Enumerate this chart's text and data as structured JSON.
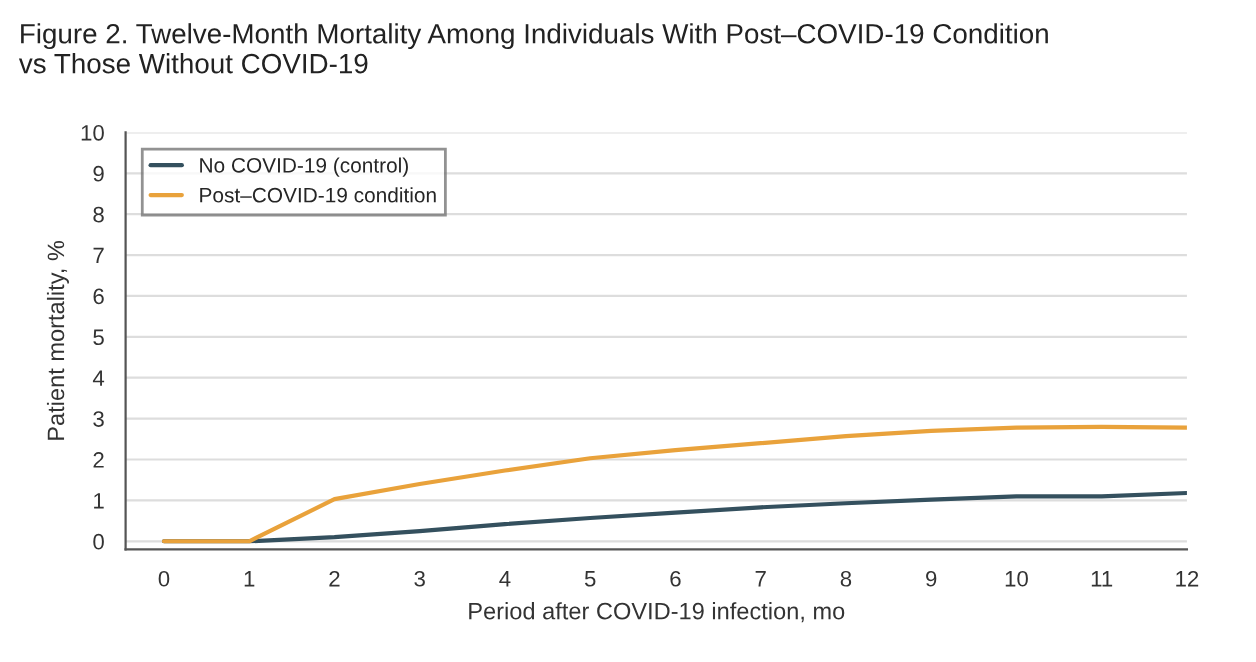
{
  "chart_data": {
    "type": "line",
    "title": "Figure 2. Twelve-Month Mortality Among Individuals With Post–COVID-19 Condition\nvs Those Without COVID-19",
    "xlabel": "Period after COVID-19 infection, mo",
    "ylabel": "Patient mortality, %",
    "x": [
      0,
      1,
      2,
      3,
      4,
      5,
      6,
      7,
      8,
      9,
      10,
      11,
      12
    ],
    "series": [
      {
        "name": "No COVID-19 (control)",
        "color": "#34505e",
        "values": [
          0,
          0,
          0.1,
          0.25,
          0.42,
          0.57,
          0.7,
          0.83,
          0.93,
          1.02,
          1.1,
          1.1,
          1.18
        ]
      },
      {
        "name": "Post–COVID-19 condition",
        "color": "#e9a23b",
        "values": [
          0,
          0,
          1.03,
          1.4,
          1.73,
          2.03,
          2.23,
          2.4,
          2.57,
          2.7,
          2.78,
          2.8,
          2.78
        ]
      }
    ],
    "xlim": [
      -0.45,
      12
    ],
    "ylim": [
      -0.2,
      10
    ],
    "xticks": [
      0,
      1,
      2,
      3,
      4,
      5,
      6,
      7,
      8,
      9,
      10,
      11,
      12
    ],
    "yticks": [
      0,
      1,
      2,
      3,
      4,
      5,
      6,
      7,
      8,
      9,
      10
    ],
    "grid": "y",
    "legend": "top left",
    "marker": "none",
    "line_style": "solid"
  }
}
